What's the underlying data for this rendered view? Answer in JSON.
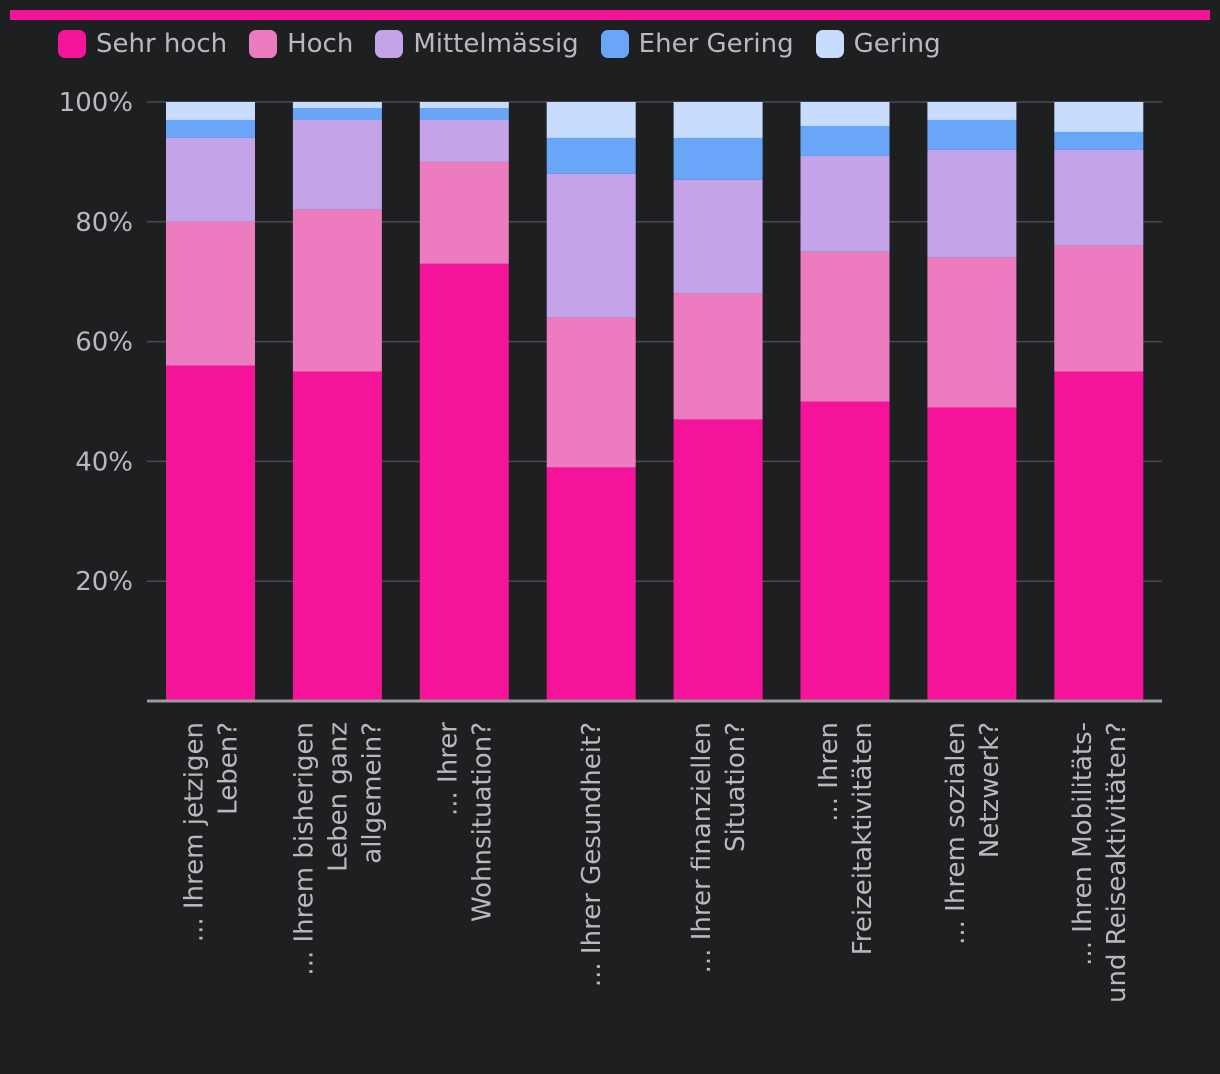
{
  "colors": {
    "background": "#1e1f21",
    "accent": "#f5139a",
    "grid": "#4a4b50",
    "axis": "#9a9a9e",
    "text": "#b9b9bd"
  },
  "chart_data": {
    "type": "bar",
    "stacked": true,
    "ylim": [
      0,
      100
    ],
    "yticks": [
      {
        "value": 20,
        "label": "20%"
      },
      {
        "value": 40,
        "label": "40%"
      },
      {
        "value": 60,
        "label": "60%"
      },
      {
        "value": 80,
        "label": "80%"
      },
      {
        "value": 100,
        "label": "100%"
      }
    ],
    "legend_position": "top-left",
    "categories": [
      {
        "lines": [
          "... Ihrem jetzigen",
          "Leben?"
        ]
      },
      {
        "lines": [
          "... Ihrem bisherigen",
          "Leben ganz",
          "allgemein?"
        ]
      },
      {
        "lines": [
          "... Ihrer",
          "Wohnsituation?"
        ]
      },
      {
        "lines": [
          "... Ihrer Gesundheit?"
        ]
      },
      {
        "lines": [
          "... Ihrer finanziellen",
          "Situation?"
        ]
      },
      {
        "lines": [
          "... Ihren",
          "Freizeitaktivitäten"
        ]
      },
      {
        "lines": [
          "... Ihrem sozialen",
          "Netzwerk?"
        ]
      },
      {
        "lines": [
          "... Ihren Mobilitäts-",
          "und Reiseaktivitäten?"
        ]
      }
    ],
    "series": [
      {
        "name": "Sehr hoch",
        "color": "#f5139a",
        "values": [
          56,
          55,
          73,
          39,
          47,
          50,
          49,
          55
        ]
      },
      {
        "name": "Hoch",
        "color": "#ec7bbf",
        "values": [
          24,
          27,
          17,
          25,
          21,
          25,
          25,
          21
        ]
      },
      {
        "name": "Mittelmässig",
        "color": "#c4a3e8",
        "values": [
          14,
          15,
          7,
          24,
          19,
          16,
          18,
          16
        ]
      },
      {
        "name": "Eher Gering",
        "color": "#6aa6f8",
        "values": [
          3,
          2,
          2,
          6,
          7,
          5,
          5,
          3
        ]
      },
      {
        "name": "Gering",
        "color": "#c8dcfd",
        "values": [
          3,
          1,
          1,
          6,
          6,
          4,
          3,
          5
        ]
      }
    ]
  }
}
